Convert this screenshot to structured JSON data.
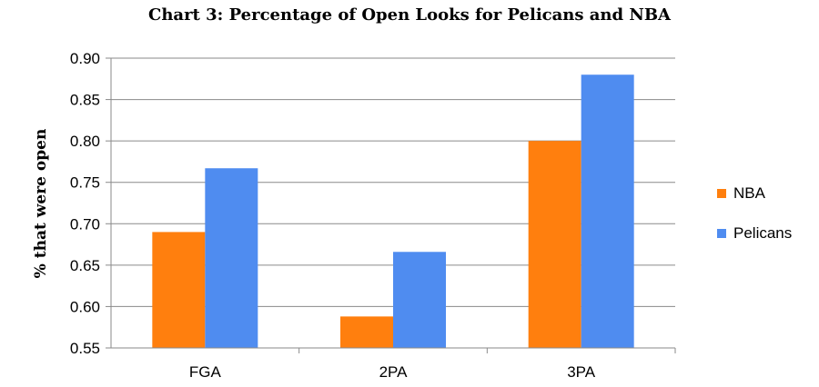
{
  "chart_data": {
    "type": "bar",
    "title": "Chart 3: Percentage of Open Looks for Pelicans and NBA",
    "xlabel": "",
    "ylabel": "% that were open",
    "categories": [
      "FGA",
      "2PA",
      "3PA"
    ],
    "series": [
      {
        "name": "NBA",
        "color": "#ff7f0e",
        "values": [
          0.69,
          0.588,
          0.8
        ]
      },
      {
        "name": "Pelicans",
        "color": "#4f8cf0",
        "values": [
          0.767,
          0.666,
          0.88
        ]
      }
    ],
    "ylim": [
      0.55,
      0.9
    ],
    "yticks": [
      "0.55",
      "0.60",
      "0.65",
      "0.70",
      "0.75",
      "0.80",
      "0.85",
      "0.90"
    ],
    "grid": true,
    "legend_position": "right"
  }
}
